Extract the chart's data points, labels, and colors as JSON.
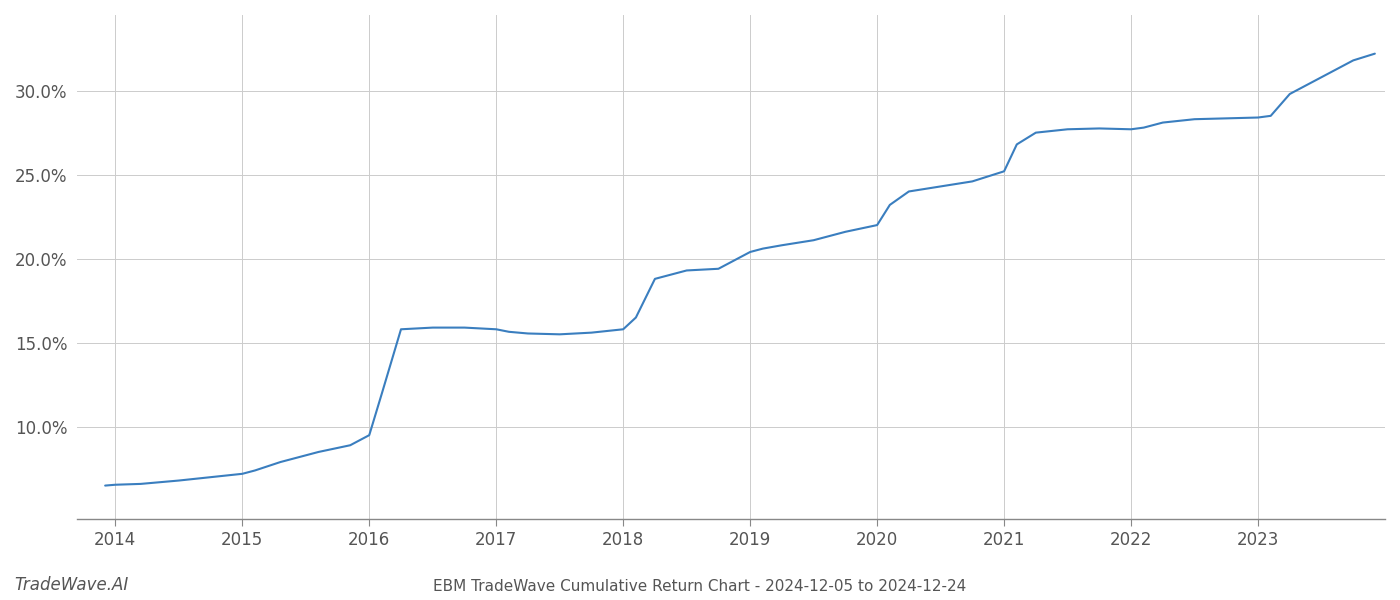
{
  "title": "EBM TradeWave Cumulative Return Chart - 2024-12-05 to 2024-12-24",
  "watermark": "TradeWave.AI",
  "line_color": "#3a7ebf",
  "line_width": 1.5,
  "background_color": "#ffffff",
  "grid_color": "#cccccc",
  "x_values": [
    2013.92,
    2014.0,
    2014.2,
    2014.5,
    2014.75,
    2015.0,
    2015.1,
    2015.3,
    2015.6,
    2015.85,
    2016.0,
    2016.1,
    2016.25,
    2016.5,
    2016.75,
    2017.0,
    2017.1,
    2017.25,
    2017.5,
    2017.75,
    2018.0,
    2018.1,
    2018.25,
    2018.5,
    2018.75,
    2019.0,
    2019.1,
    2019.25,
    2019.5,
    2019.75,
    2020.0,
    2020.1,
    2020.25,
    2020.5,
    2020.75,
    2021.0,
    2021.1,
    2021.25,
    2021.5,
    2021.75,
    2022.0,
    2022.1,
    2022.25,
    2022.5,
    2022.75,
    2023.0,
    2023.1,
    2023.25,
    2023.5,
    2023.75,
    2023.92
  ],
  "y_values": [
    6.5,
    6.55,
    6.6,
    6.8,
    7.0,
    7.2,
    7.4,
    7.9,
    8.5,
    8.9,
    9.5,
    12.0,
    15.8,
    15.9,
    15.9,
    15.8,
    15.65,
    15.55,
    15.5,
    15.6,
    15.8,
    16.5,
    18.8,
    19.3,
    19.4,
    20.4,
    20.6,
    20.8,
    21.1,
    21.6,
    22.0,
    23.2,
    24.0,
    24.3,
    24.6,
    25.2,
    26.8,
    27.5,
    27.7,
    27.75,
    27.7,
    27.8,
    28.1,
    28.3,
    28.35,
    28.4,
    28.5,
    29.8,
    30.8,
    31.8,
    32.2
  ],
  "xlim": [
    2013.7,
    2024.0
  ],
  "ylim": [
    4.5,
    34.5
  ],
  "xticks": [
    2014,
    2015,
    2016,
    2017,
    2018,
    2019,
    2020,
    2021,
    2022,
    2023
  ],
  "yticks": [
    10.0,
    15.0,
    20.0,
    25.0,
    30.0
  ],
  "ytick_labels": [
    "10.0%",
    "15.0%",
    "20.0%",
    "25.0%",
    "30.0%"
  ],
  "tick_fontsize": 12,
  "title_fontsize": 11,
  "watermark_fontsize": 12
}
